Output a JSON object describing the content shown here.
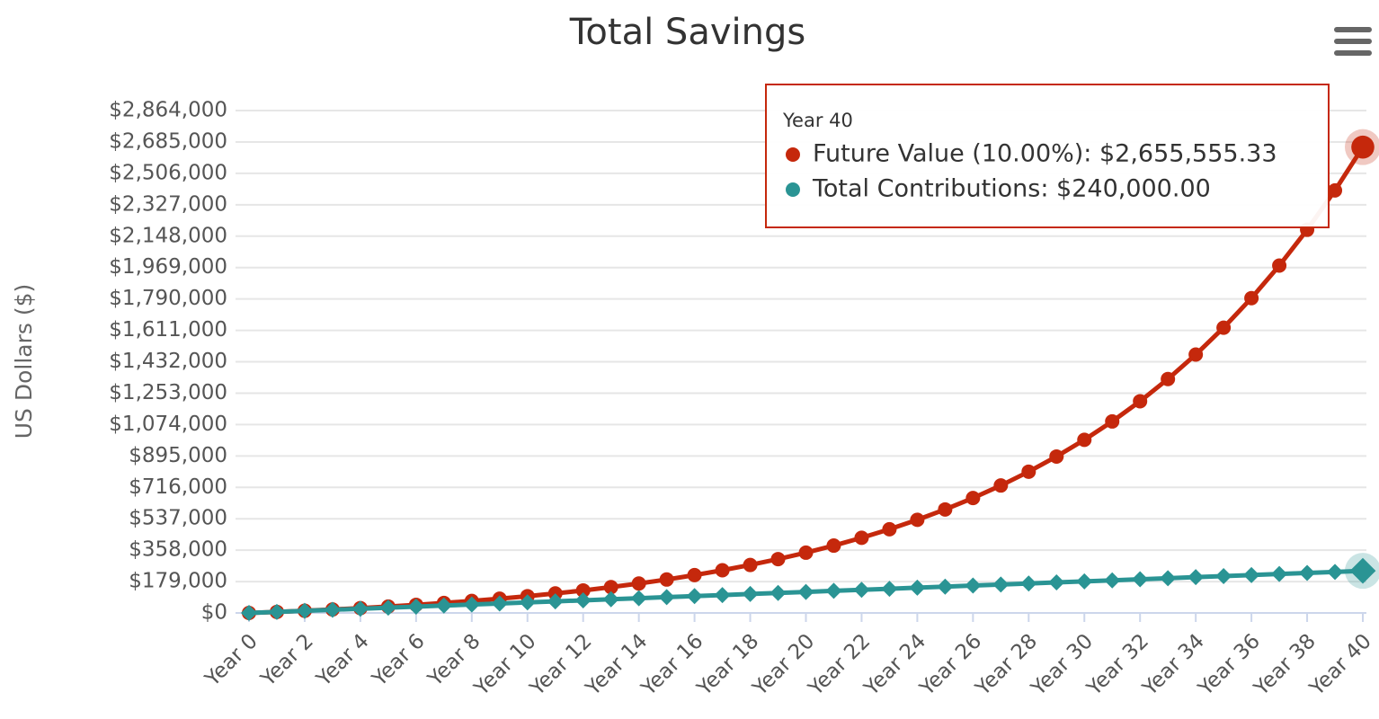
{
  "chart_data": {
    "type": "line",
    "title": "Total Savings",
    "y_axis_label": "US Dollars ($)",
    "categories": [
      "Year 0",
      null,
      "Year 2",
      null,
      "Year 4",
      null,
      "Year 6",
      null,
      "Year 8",
      null,
      "Year 10",
      null,
      "Year 12",
      null,
      "Year 14",
      null,
      "Year 16",
      null,
      "Year 18",
      null,
      "Year 20",
      null,
      "Year 22",
      null,
      "Year 24",
      null,
      "Year 26",
      null,
      "Year 28",
      null,
      "Year 30",
      null,
      "Year 32",
      null,
      "Year 34",
      null,
      "Year 36",
      null,
      "Year 38",
      null,
      "Year 40"
    ],
    "series": [
      {
        "name": "Future Value (10.00%)",
        "color": "#c5280c",
        "marker": "circle",
        "values": [
          0,
          6000,
          12600,
          19860,
          27846,
          36630.6,
          46293.66,
          56923.03,
          68615.33,
          81476.86,
          95624.55,
          111187,
          128305.7,
          147136.27,
          167849.9,
          190634.89,
          215698.38,
          243268.22,
          273595.04,
          306954.54,
          343650,
          384015,
          428416.5,
          477258.15,
          530983.96,
          590082.36,
          655090.59,
          726599.65,
          805259.62,
          891785.58,
          986964.14,
          1091660.55,
          1206826.61,
          1333509.27,
          1472860.19,
          1626146.21,
          1794760.83,
          1980236.92,
          2184260.61,
          2408686.67,
          2655555.33
        ]
      },
      {
        "name": "Total Contributions",
        "color": "#2a9494",
        "marker": "diamond",
        "values": [
          0,
          6000,
          12000,
          18000,
          24000,
          30000,
          36000,
          42000,
          48000,
          54000,
          60000,
          66000,
          72000,
          78000,
          84000,
          90000,
          96000,
          102000,
          108000,
          114000,
          120000,
          126000,
          132000,
          138000,
          144000,
          150000,
          156000,
          162000,
          168000,
          174000,
          180000,
          186000,
          192000,
          198000,
          204000,
          210000,
          216000,
          222000,
          228000,
          234000,
          240000
        ]
      }
    ],
    "ylim": [
      0,
      2864000
    ],
    "yticks": [
      {
        "value": 0,
        "label": "$0"
      },
      {
        "value": 179000,
        "label": "$179,000"
      },
      {
        "value": 358000,
        "label": "$358,000"
      },
      {
        "value": 537000,
        "label": "$537,000"
      },
      {
        "value": 716000,
        "label": "$716,000"
      },
      {
        "value": 895000,
        "label": "$895,000"
      },
      {
        "value": 1074000,
        "label": "$1,074,000"
      },
      {
        "value": 1253000,
        "label": "$1,253,000"
      },
      {
        "value": 1432000,
        "label": "$1,432,000"
      },
      {
        "value": 1611000,
        "label": "$1,611,000"
      },
      {
        "value": 1790000,
        "label": "$1,790,000"
      },
      {
        "value": 1969000,
        "label": "$1,969,000"
      },
      {
        "value": 2148000,
        "label": "$2,148,000"
      },
      {
        "value": 2327000,
        "label": "$2,327,000"
      },
      {
        "value": 2506000,
        "label": "$2,506,000"
      },
      {
        "value": 2685000,
        "label": "$2,685,000"
      },
      {
        "value": 2864000,
        "label": "$2,864,000"
      }
    ],
    "grid": true,
    "tooltip": {
      "title": "Year 40",
      "lines": [
        "Future Value (10.00%): $2,655,555.33",
        "Total Contributions: $240,000.00"
      ]
    }
  }
}
